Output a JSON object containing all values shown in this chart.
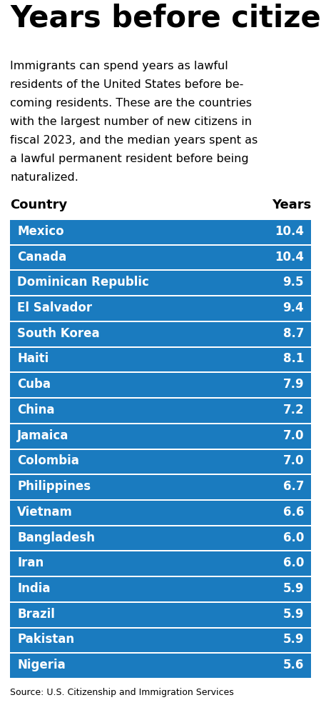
{
  "title": "Years before citizenship",
  "subtitle_lines": [
    "Immigrants can spend years as lawful",
    "residents of the United States before be-",
    "coming residents. These are the countries",
    "with the largest number of new citizens in",
    "fiscal 2023, and the median years spent as",
    "a lawful permanent resident before being",
    "naturalized."
  ],
  "col_country": "Country",
  "col_years": "Years",
  "source": "Source: U.S. Citizenship and Immigration Services",
  "countries": [
    "Mexico",
    "Canada",
    "Dominican Republic",
    "El Salvador",
    "South Korea",
    "Haiti",
    "Cuba",
    "China",
    "Jamaica",
    "Colombia",
    "Philippines",
    "Vietnam",
    "Bangladesh",
    "Iran",
    "India",
    "Brazil",
    "Pakistan",
    "Nigeria"
  ],
  "years": [
    10.4,
    10.4,
    9.5,
    9.4,
    8.7,
    8.1,
    7.9,
    7.2,
    7.0,
    7.0,
    6.7,
    6.6,
    6.0,
    6.0,
    5.9,
    5.9,
    5.9,
    5.6
  ],
  "row_bg_color": "#1a7bbf",
  "row_text_color": "#ffffff",
  "header_text_color": "#000000",
  "title_color": "#000000",
  "bg_color": "#ffffff",
  "row_border_color": "#ffffff",
  "title_fontsize": 30,
  "subtitle_fontsize": 11.5,
  "header_fontsize": 13,
  "row_fontsize": 12,
  "source_fontsize": 9
}
